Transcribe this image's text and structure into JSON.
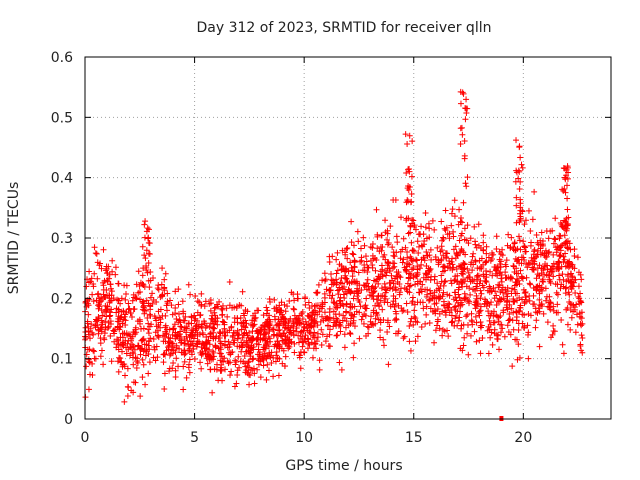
{
  "chart_data": {
    "type": "scatter",
    "title": "Day 312 of 2023, SRMTID for receiver qlln",
    "xlabel": "GPS time / hours",
    "ylabel": "SRMTID / TECUs",
    "xlim": [
      0,
      24
    ],
    "ylim": [
      0,
      0.6
    ],
    "xticks": [
      0,
      5,
      10,
      15,
      20
    ],
    "yticks": [
      0,
      0.1,
      0.2,
      0.3,
      0.4,
      0.5,
      0.6
    ],
    "ytick_labels": [
      "0",
      "0.1",
      "0.2",
      "0.3",
      "0.4",
      "0.5",
      "0.6"
    ],
    "grid": true,
    "marker": "plus",
    "color": "#ff0000",
    "coverage_hours": [
      0,
      22.7
    ],
    "trend": [
      {
        "hour": 0,
        "median": 0.15,
        "spread": 0.07
      },
      {
        "hour": 1,
        "median": 0.2,
        "spread": 0.07
      },
      {
        "hour": 2,
        "median": 0.13,
        "spread": 0.08
      },
      {
        "hour": 3,
        "median": 0.17,
        "spread": 0.07
      },
      {
        "hour": 4,
        "median": 0.13,
        "spread": 0.06
      },
      {
        "hour": 5,
        "median": 0.14,
        "spread": 0.05
      },
      {
        "hour": 6,
        "median": 0.13,
        "spread": 0.05
      },
      {
        "hour": 7,
        "median": 0.13,
        "spread": 0.06
      },
      {
        "hour": 8,
        "median": 0.12,
        "spread": 0.05
      },
      {
        "hour": 9,
        "median": 0.15,
        "spread": 0.05
      },
      {
        "hour": 10,
        "median": 0.14,
        "spread": 0.04
      },
      {
        "hour": 11,
        "median": 0.18,
        "spread": 0.06
      },
      {
        "hour": 12,
        "median": 0.21,
        "spread": 0.07
      },
      {
        "hour": 13,
        "median": 0.22,
        "spread": 0.08
      },
      {
        "hour": 14,
        "median": 0.23,
        "spread": 0.08
      },
      {
        "hour": 15,
        "median": 0.24,
        "spread": 0.09
      },
      {
        "hour": 16,
        "median": 0.23,
        "spread": 0.09
      },
      {
        "hour": 17,
        "median": 0.22,
        "spread": 0.1
      },
      {
        "hour": 18,
        "median": 0.22,
        "spread": 0.08
      },
      {
        "hour": 19,
        "median": 0.2,
        "spread": 0.08
      },
      {
        "hour": 20,
        "median": 0.23,
        "spread": 0.09
      },
      {
        "hour": 21,
        "median": 0.23,
        "spread": 0.07
      },
      {
        "hour": 22,
        "median": 0.26,
        "spread": 0.09
      },
      {
        "hour": 22.7,
        "median": 0.15,
        "spread": 0.05
      }
    ],
    "spikes": [
      {
        "hour": 2.8,
        "max": 0.33
      },
      {
        "hour": 14.8,
        "max": 0.48
      },
      {
        "hour": 17.3,
        "max": 0.55
      },
      {
        "hour": 19.8,
        "max": 0.47
      },
      {
        "hour": 21.9,
        "max": 0.42
      }
    ],
    "outlier": {
      "hour": 19.0,
      "value": 0.0
    }
  }
}
